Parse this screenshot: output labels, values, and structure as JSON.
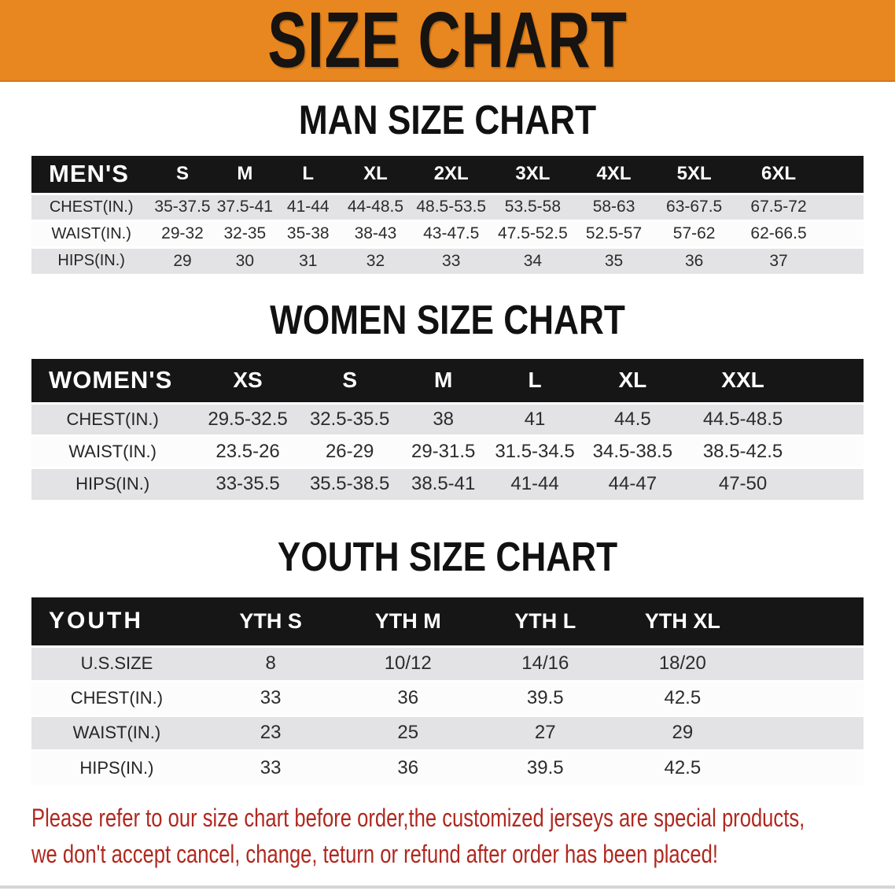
{
  "banner": {
    "title": "SIZE CHART",
    "background_color": "#E8861F",
    "text_color": "#161310"
  },
  "sections": [
    {
      "id": "men",
      "title": "MAN SIZE CHART",
      "group_label": "MEN'S",
      "sizes": [
        "S",
        "M",
        "L",
        "XL",
        "2XL",
        "3XL",
        "4XL",
        "5XL",
        "6XL"
      ],
      "rows": [
        {
          "label": "CHEST(IN.)",
          "values": [
            "35-37.5",
            "37.5-41",
            "41-44",
            "44-48.5",
            "48.5-53.5",
            "53.5-58",
            "58-63",
            "63-67.5",
            "67.5-72"
          ]
        },
        {
          "label": "WAIST(IN.)",
          "values": [
            "29-32",
            "32-35",
            "35-38",
            "38-43",
            "43-47.5",
            "47.5-52.5",
            "52.5-57",
            "57-62",
            "62-66.5"
          ]
        },
        {
          "label": "HIPS(IN.)",
          "values": [
            "29",
            "30",
            "31",
            "32",
            "33",
            "34",
            "35",
            "36",
            "37"
          ]
        }
      ]
    },
    {
      "id": "women",
      "title": "WOMEN SIZE CHART",
      "group_label": "WOMEN'S",
      "sizes": [
        "XS",
        "S",
        "M",
        "L",
        "XL",
        "XXL"
      ],
      "rows": [
        {
          "label": "CHEST(IN.)",
          "values": [
            "29.5-32.5",
            "32.5-35.5",
            "38",
            "41",
            "44.5",
            "44.5-48.5"
          ]
        },
        {
          "label": "WAIST(IN.)",
          "values": [
            "23.5-26",
            "26-29",
            "29-31.5",
            "31.5-34.5",
            "34.5-38.5",
            "38.5-42.5"
          ]
        },
        {
          "label": "HIPS(IN.)",
          "values": [
            "33-35.5",
            "35.5-38.5",
            "38.5-41",
            "41-44",
            "44-47",
            "47-50"
          ]
        }
      ]
    },
    {
      "id": "youth",
      "title": "YOUTH SIZE CHART",
      "group_label": "YOUTH",
      "sizes": [
        "YTH S",
        "YTH M",
        "YTH L",
        "YTH XL"
      ],
      "rows": [
        {
          "label": "U.S.SIZE",
          "values": [
            "8",
            "10/12",
            "14/16",
            "18/20"
          ]
        },
        {
          "label": "CHEST(IN.)",
          "values": [
            "33",
            "36",
            "39.5",
            "42.5"
          ]
        },
        {
          "label": "WAIST(IN.)",
          "values": [
            "23",
            "25",
            "27",
            "29"
          ]
        },
        {
          "label": "HIPS(IN.)",
          "values": [
            "33",
            "36",
            "39.5",
            "42.5"
          ]
        }
      ]
    }
  ],
  "table_style": {
    "header_band_color": "#161616",
    "header_text_color": "#FFFFFF",
    "row_gray_color": "#E3E3E5",
    "row_white_color": "#FCFCFC"
  },
  "footer_note": {
    "lines": [
      "Please refer to our size chart before order,the customized jerseys are special products,",
      "we don't accept cancel, change, teturn or refund after order has been placed!"
    ],
    "text_color": "#B0281F"
  }
}
